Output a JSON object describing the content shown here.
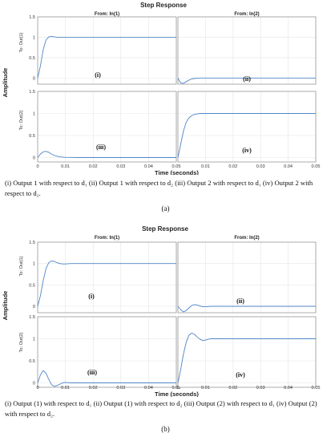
{
  "chart_data": [
    {
      "type": "line",
      "panel_label": "(a)",
      "title": "Step Response",
      "xlabel": "Time (seconds)",
      "ylabel": "Amplitude",
      "col_titles": [
        "From: In(1)",
        "From: In(2)"
      ],
      "row_titles": [
        "To: Out(1)",
        "To: Out(2)"
      ],
      "grid": true,
      "subplots": [
        {
          "row": 0,
          "col": 0,
          "tag": "(i)",
          "xlim": [
            0,
            0.05
          ],
          "ylim": [
            -0.15,
            1.5
          ],
          "yticks": [
            0,
            0.5,
            1,
            1.5
          ],
          "x": [
            0,
            0.001,
            0.002,
            0.003,
            0.004,
            0.005,
            0.006,
            0.007,
            0.008,
            0.01,
            0.012,
            0.015,
            0.02,
            0.05
          ],
          "y": [
            0,
            0.3,
            0.7,
            0.93,
            1.01,
            1.02,
            1.01,
            1.0,
            1.0,
            1.0,
            1.0,
            1.0,
            1.0,
            1.0
          ]
        },
        {
          "row": 0,
          "col": 1,
          "tag": "(ii)",
          "xlim": [
            0,
            0.05
          ],
          "ylim": [
            -0.15,
            1.5
          ],
          "yticks": [
            0,
            0.5,
            1,
            1.5
          ],
          "x": [
            0,
            0.001,
            0.002,
            0.003,
            0.004,
            0.005,
            0.006,
            0.008,
            0.01,
            0.015,
            0.05
          ],
          "y": [
            0,
            -0.12,
            -0.13,
            -0.09,
            -0.05,
            -0.02,
            -0.01,
            0,
            0,
            0,
            0
          ]
        },
        {
          "row": 1,
          "col": 0,
          "tag": "(iii)",
          "xlim": [
            0,
            0.05
          ],
          "ylim": [
            -0.1,
            1.5
          ],
          "yticks": [
            0,
            0.5,
            1,
            1.5
          ],
          "x": [
            0,
            0.001,
            0.002,
            0.003,
            0.004,
            0.005,
            0.006,
            0.007,
            0.008,
            0.01,
            0.015,
            0.05
          ],
          "y": [
            0,
            0.08,
            0.13,
            0.14,
            0.12,
            0.08,
            0.05,
            0.03,
            0.015,
            0.005,
            0,
            0
          ]
        },
        {
          "row": 1,
          "col": 1,
          "tag": "(iv)",
          "xlim": [
            0,
            0.05
          ],
          "ylim": [
            -0.1,
            1.5
          ],
          "yticks": [
            0,
            0.5,
            1,
            1.5
          ],
          "x": [
            0,
            0.001,
            0.002,
            0.003,
            0.004,
            0.005,
            0.006,
            0.007,
            0.008,
            0.01,
            0.015,
            0.05
          ],
          "y": [
            0,
            0.3,
            0.6,
            0.8,
            0.9,
            0.95,
            0.98,
            0.99,
            1.0,
            1.0,
            1.0,
            1.0
          ]
        }
      ],
      "xticks_left": [
        0,
        0.01,
        0.02,
        0.03,
        0.04,
        0.05
      ],
      "xtick_labels_left": [
        "0",
        "0.01",
        "0.02",
        "0.03",
        "0.04",
        "0.05"
      ],
      "xticks_right": [
        0.01,
        0.02,
        0.03,
        0.04,
        0.05
      ],
      "xtick_labels_right": [
        "0.01",
        "0.02",
        "0.03",
        "0.04",
        "0.05"
      ],
      "ytick_labels": [
        "0",
        "0.5",
        "1",
        "1.5"
      ]
    },
    {
      "type": "line",
      "panel_label": "(b)",
      "title": "Step Response",
      "xlabel": "Time (seconds)",
      "ylabel": "Amplitude",
      "col_titles": [
        "From: In(1)",
        "From: In(2)"
      ],
      "row_titles": [
        "To: Out(1)",
        "To: Out(2)"
      ],
      "grid": true,
      "subplots": [
        {
          "row": 0,
          "col": 0,
          "tag": "(i)",
          "xlim": [
            0,
            0.05
          ],
          "ylim": [
            -0.15,
            1.5
          ],
          "yticks": [
            0,
            0.5,
            1,
            1.5
          ],
          "x": [
            0,
            0.001,
            0.002,
            0.003,
            0.004,
            0.005,
            0.006,
            0.007,
            0.008,
            0.009,
            0.01,
            0.012,
            0.015,
            0.02,
            0.05
          ],
          "y": [
            0,
            0.25,
            0.6,
            0.88,
            1.02,
            1.06,
            1.05,
            1.02,
            1.0,
            0.99,
            0.99,
            1.0,
            1.0,
            1.0,
            1.0
          ]
        },
        {
          "row": 0,
          "col": 1,
          "tag": "(ii)",
          "xlim": [
            0,
            0.05
          ],
          "ylim": [
            -0.15,
            1.5
          ],
          "yticks": [
            0,
            0.5,
            1,
            1.5
          ],
          "x": [
            0,
            0.001,
            0.002,
            0.003,
            0.004,
            0.005,
            0.006,
            0.007,
            0.008,
            0.009,
            0.01,
            0.012,
            0.015,
            0.05
          ],
          "y": [
            0,
            -0.08,
            -0.13,
            -0.1,
            -0.04,
            0.02,
            0.04,
            0.03,
            0.01,
            -0.01,
            -0.01,
            0,
            0,
            0
          ]
        },
        {
          "row": 1,
          "col": 0,
          "tag": "(iii)",
          "xlim": [
            0,
            0.05
          ],
          "ylim": [
            -0.1,
            1.5
          ],
          "yticks": [
            0,
            0.5,
            1,
            1.5
          ],
          "x": [
            0,
            0.001,
            0.002,
            0.003,
            0.004,
            0.005,
            0.006,
            0.007,
            0.008,
            0.009,
            0.01,
            0.012,
            0.015,
            0.05
          ],
          "y": [
            0,
            0.18,
            0.28,
            0.22,
            0.08,
            -0.04,
            -0.08,
            -0.06,
            -0.03,
            0,
            0.01,
            0,
            0,
            0
          ]
        },
        {
          "row": 1,
          "col": 1,
          "tag": "(iv)",
          "xlim": [
            0,
            0.05
          ],
          "ylim": [
            -0.1,
            1.5
          ],
          "yticks": [
            0,
            0.5,
            1,
            1.5
          ],
          "x": [
            0,
            0.001,
            0.002,
            0.003,
            0.004,
            0.005,
            0.006,
            0.007,
            0.008,
            0.009,
            0.01,
            0.011,
            0.012,
            0.015,
            0.05
          ],
          "y": [
            0,
            0.3,
            0.65,
            0.92,
            1.08,
            1.13,
            1.1,
            1.04,
            0.99,
            0.96,
            0.97,
            0.99,
            1.0,
            1.0,
            1.0
          ]
        }
      ],
      "xticks_left": [
        0,
        0.01,
        0.02,
        0.03,
        0.04,
        0.05
      ],
      "xtick_labels_left": [
        "0",
        "0.01",
        "0.02",
        "0.03",
        "0.04",
        "0.05"
      ],
      "xticks_right": [
        0,
        0.01,
        0.02,
        0.03,
        0.04,
        0.05
      ],
      "xtick_labels_right": [
        "0",
        "0.01",
        "0.02",
        "0.03",
        "0.04",
        "0.05"
      ],
      "ytick_labels": [
        "0",
        "0.5",
        "1",
        "1.5"
      ]
    }
  ],
  "captions": {
    "a": "(i) Output 1 with respect to d₁ (ii) Output 1 with respect to d₂ (iii) Output 2 with respect to d₁ (iv) Output 2 with respect to d₂.",
    "b": "(i) Output (1) with respect to d₁ (ii) Output (1) with respect to d₂ (iii) Output (2) with respect to d₁ (iv) Output (2) with respect to d₂."
  },
  "colors": {
    "line": "#4f86c6",
    "grid": "#e6e6e6",
    "axis": "#8a8a8a"
  }
}
